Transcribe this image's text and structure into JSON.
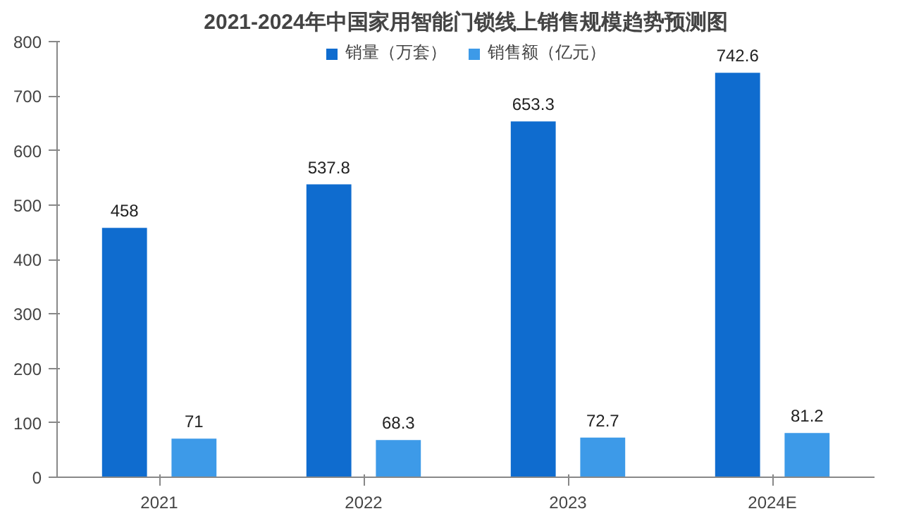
{
  "chart_data": {
    "type": "bar",
    "title": "2021-2024年中国家用智能门锁线上销售规模趋势预测图",
    "categories": [
      "2021",
      "2022",
      "2023",
      "2024E"
    ],
    "series": [
      {
        "name": "销量（万套）",
        "color": "#0f6ccf",
        "values": [
          458,
          537.8,
          653.3,
          742.6
        ]
      },
      {
        "name": "销售额（亿元）",
        "color": "#3d9ae8",
        "values": [
          71,
          68.3,
          72.7,
          81.2
        ]
      }
    ],
    "ylim": [
      0,
      800
    ],
    "yticks": [
      0,
      100,
      200,
      300,
      400,
      500,
      600,
      700,
      800
    ],
    "grid": false,
    "legend": "top",
    "data_labels": true
  }
}
